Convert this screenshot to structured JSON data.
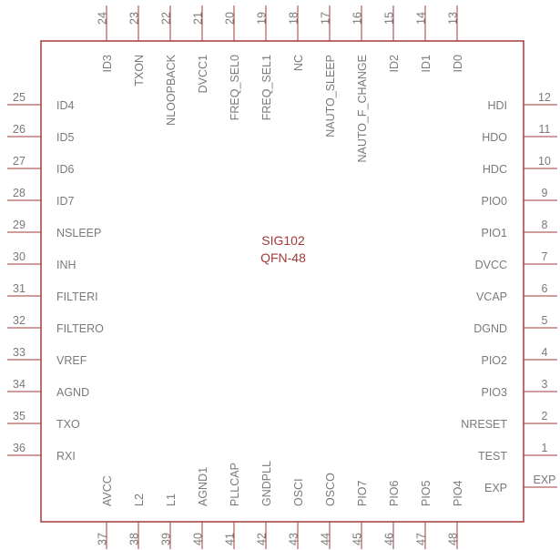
{
  "component": {
    "name": "SIG102",
    "package": "QFN-48",
    "line_color": "#a33a3a",
    "text_color": "#7a7a7a"
  },
  "pins": {
    "right": [
      {
        "num": "12",
        "name": "HDI"
      },
      {
        "num": "11",
        "name": "HDO"
      },
      {
        "num": "10",
        "name": "HDC"
      },
      {
        "num": "9",
        "name": "PIO0"
      },
      {
        "num": "8",
        "name": "PIO1"
      },
      {
        "num": "7",
        "name": "DVCC"
      },
      {
        "num": "6",
        "name": "VCAP"
      },
      {
        "num": "5",
        "name": "DGND"
      },
      {
        "num": "4",
        "name": "PIO2"
      },
      {
        "num": "3",
        "name": "PIO3"
      },
      {
        "num": "2",
        "name": "NRESET"
      },
      {
        "num": "1",
        "name": "TEST"
      },
      {
        "num": "EXP",
        "name": "EXP"
      }
    ],
    "left": [
      {
        "num": "25",
        "name": "ID4"
      },
      {
        "num": "26",
        "name": "ID5"
      },
      {
        "num": "27",
        "name": "ID6"
      },
      {
        "num": "28",
        "name": "ID7"
      },
      {
        "num": "29",
        "name": "NSLEEP"
      },
      {
        "num": "30",
        "name": "INH"
      },
      {
        "num": "31",
        "name": "FILTERI"
      },
      {
        "num": "32",
        "name": "FILTERO"
      },
      {
        "num": "33",
        "name": "VREF"
      },
      {
        "num": "34",
        "name": "AGND"
      },
      {
        "num": "35",
        "name": "TXO"
      },
      {
        "num": "36",
        "name": "RXI"
      }
    ],
    "top": [
      {
        "num": "24",
        "name": "ID3"
      },
      {
        "num": "23",
        "name": "TXON"
      },
      {
        "num": "22",
        "name": "NLOOPBACK"
      },
      {
        "num": "21",
        "name": "DVCC1"
      },
      {
        "num": "20",
        "name": "FREQ_SEL0"
      },
      {
        "num": "19",
        "name": "FREQ_SEL1"
      },
      {
        "num": "18",
        "name": "NC"
      },
      {
        "num": "17",
        "name": "NAUTO_SLEEP"
      },
      {
        "num": "16",
        "name": "NAUTO_F_CHANGE"
      },
      {
        "num": "15",
        "name": "ID2"
      },
      {
        "num": "14",
        "name": "ID1"
      },
      {
        "num": "13",
        "name": "ID0"
      }
    ],
    "bottom": [
      {
        "num": "37",
        "name": "AVCC"
      },
      {
        "num": "38",
        "name": "L2"
      },
      {
        "num": "39",
        "name": "L1"
      },
      {
        "num": "40",
        "name": "AGND1"
      },
      {
        "num": "41",
        "name": "PLLCAP"
      },
      {
        "num": "42",
        "name": "GNDPLL"
      },
      {
        "num": "43",
        "name": "OSCI"
      },
      {
        "num": "44",
        "name": "OSCO"
      },
      {
        "num": "45",
        "name": "PIO7"
      },
      {
        "num": "46",
        "name": "PIO6"
      },
      {
        "num": "47",
        "name": "PIO5"
      },
      {
        "num": "48",
        "name": "PIO4"
      }
    ]
  }
}
